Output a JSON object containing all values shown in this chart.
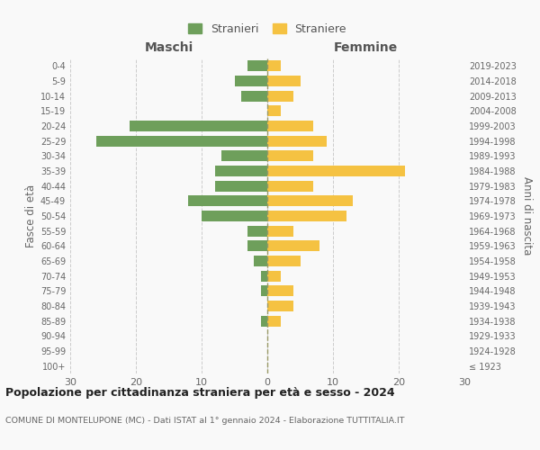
{
  "age_groups": [
    "100+",
    "95-99",
    "90-94",
    "85-89",
    "80-84",
    "75-79",
    "70-74",
    "65-69",
    "60-64",
    "55-59",
    "50-54",
    "45-49",
    "40-44",
    "35-39",
    "30-34",
    "25-29",
    "20-24",
    "15-19",
    "10-14",
    "5-9",
    "0-4"
  ],
  "birth_years": [
    "≤ 1923",
    "1924-1928",
    "1929-1933",
    "1934-1938",
    "1939-1943",
    "1944-1948",
    "1949-1953",
    "1954-1958",
    "1959-1963",
    "1964-1968",
    "1969-1973",
    "1974-1978",
    "1979-1983",
    "1984-1988",
    "1989-1993",
    "1994-1998",
    "1999-2003",
    "2004-2008",
    "2009-2013",
    "2014-2018",
    "2019-2023"
  ],
  "maschi": [
    0,
    0,
    0,
    1,
    0,
    1,
    1,
    2,
    3,
    3,
    10,
    12,
    8,
    8,
    7,
    26,
    21,
    0,
    4,
    5,
    3
  ],
  "femmine": [
    0,
    0,
    0,
    2,
    4,
    4,
    2,
    5,
    8,
    4,
    12,
    13,
    7,
    21,
    7,
    9,
    7,
    2,
    4,
    5,
    2
  ],
  "maschi_color": "#6e9f5b",
  "femmine_color": "#f5c242",
  "background_color": "#f9f9f9",
  "grid_color": "#cccccc",
  "title": "Popolazione per cittadinanza straniera per età e sesso - 2024",
  "subtitle": "COMUNE DI MONTELUPONE (MC) - Dati ISTAT al 1° gennaio 2024 - Elaborazione TUTTITALIA.IT",
  "ylabel_left": "Fasce di età",
  "ylabel_right": "Anni di nascita",
  "xlabel_maschi": "Maschi",
  "xlabel_femmine": "Femmine",
  "legend_maschi": "Stranieri",
  "legend_femmine": "Straniere",
  "xlim": 30,
  "bar_height": 0.72
}
